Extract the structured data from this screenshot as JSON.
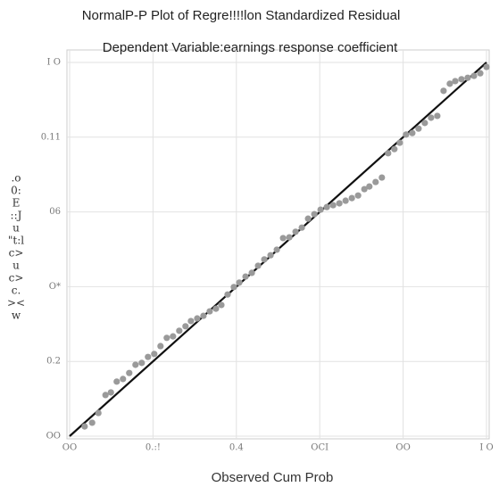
{
  "chart_data": {
    "type": "scatter",
    "title": "NormalP-P Plot of Regre!!!!lon Standardized Residual",
    "subtitle": "Dependent Variable:earnings response coefficient",
    "x_label": "Observed Cum Prob",
    "y_label_lines": [
      ".o",
      "0:",
      "E",
      "::J",
      "u",
      "\"t:l",
      "c>",
      "u",
      "c>",
      "c.",
      "><",
      "w"
    ],
    "xlim": [
      0,
      1
    ],
    "ylim": [
      0,
      1
    ],
    "xticks": [
      {
        "value": 0,
        "label": "OO"
      },
      {
        "value": 0.2,
        "label": "0.:!"
      },
      0.4,
      {
        "value": 0.6,
        "label": "OCI"
      },
      {
        "value": 0.8,
        "label": "OO"
      },
      {
        "value": 1,
        "label": "I O"
      }
    ],
    "yticks": [
      {
        "value": 0,
        "label": "OO"
      },
      0.2,
      {
        "value": 0.4,
        "label": "O*"
      },
      {
        "value": 0.6,
        "label": "06"
      },
      {
        "value": 0.8,
        "label": "0.11"
      },
      {
        "value": 1,
        "label": "I O"
      }
    ],
    "grid": true,
    "color": "#9a9a9a",
    "x": [
      0.036,
      0.054,
      0.069,
      0.086,
      0.099,
      0.113,
      0.128,
      0.143,
      0.158,
      0.173,
      0.188,
      0.203,
      0.218,
      0.233,
      0.248,
      0.263,
      0.278,
      0.291,
      0.306,
      0.321,
      0.336,
      0.351,
      0.364,
      0.379,
      0.394,
      0.407,
      0.422,
      0.437,
      0.452,
      0.467,
      0.482,
      0.497,
      0.512,
      0.527,
      0.542,
      0.557,
      0.572,
      0.587,
      0.602,
      0.617,
      0.632,
      0.647,
      0.662,
      0.677,
      0.692,
      0.707,
      0.719,
      0.734,
      0.749,
      0.764,
      0.779,
      0.792,
      0.807,
      0.822,
      0.837,
      0.852,
      0.867,
      0.882,
      0.897,
      0.912,
      0.925,
      0.94,
      0.955,
      0.97,
      0.985,
      1.0
    ],
    "values": [
      0.026,
      0.036,
      0.062,
      0.11,
      0.117,
      0.146,
      0.153,
      0.169,
      0.191,
      0.196,
      0.212,
      0.22,
      0.241,
      0.263,
      0.267,
      0.282,
      0.294,
      0.308,
      0.315,
      0.322,
      0.334,
      0.341,
      0.351,
      0.379,
      0.399,
      0.411,
      0.427,
      0.437,
      0.456,
      0.473,
      0.484,
      0.499,
      0.53,
      0.532,
      0.547,
      0.558,
      0.582,
      0.594,
      0.606,
      0.613,
      0.618,
      0.623,
      0.63,
      0.637,
      0.644,
      0.661,
      0.668,
      0.68,
      0.692,
      0.757,
      0.768,
      0.785,
      0.807,
      0.811,
      0.823,
      0.838,
      0.852,
      0.857,
      0.924,
      0.943,
      0.95,
      0.955,
      0.959,
      0.964,
      0.971,
      0.988
    ]
  }
}
